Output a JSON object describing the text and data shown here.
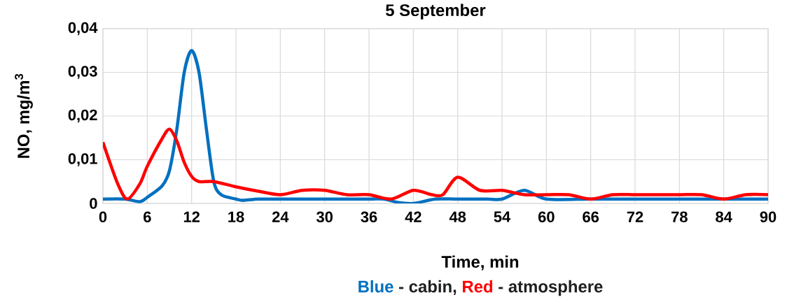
{
  "chart_data": {
    "type": "line",
    "title": "5 September",
    "xlabel": "Time, min",
    "ylabel": "NO, mg/m$^{3}$",
    "annotations": [
      "Blue",
      "- cabin,",
      "Red",
      "- atmosphere"
    ],
    "xlim": [
      0,
      90
    ],
    "xticks": [
      0,
      6,
      12,
      18,
      24,
      30,
      36,
      42,
      48,
      54,
      60,
      66,
      72,
      78,
      84,
      90
    ],
    "ylim": [
      0,
      0.04
    ],
    "yticks": [
      0,
      {
        "value": 0.01,
        "label": "0,01"
      },
      {
        "value": 0.02,
        "label": "0,02"
      },
      {
        "value": 0.03,
        "label": "0,03"
      },
      {
        "value": 0.04,
        "label": "0,04"
      }
    ],
    "grid": true,
    "marker": "none",
    "line_style": "solid",
    "series": [
      {
        "color": "#0070c0",
        "x": [
          0,
          3,
          5,
          6,
          8,
          9,
          10,
          11,
          12,
          13,
          14,
          15,
          16,
          18,
          19,
          21,
          24,
          30,
          36,
          38,
          40,
          42,
          45,
          48,
          52,
          54,
          57,
          60,
          66,
          72,
          78,
          84,
          90
        ],
        "values": [
          0.001,
          0.001,
          0.0004,
          0.0014,
          0.004,
          0.0075,
          0.017,
          0.03,
          0.035,
          0.03,
          0.017,
          0.005,
          0.002,
          0.001,
          0.0007,
          0.001,
          0.001,
          0.001,
          0.001,
          0.001,
          0.0002,
          0,
          0.001,
          0.001,
          0.001,
          0.001,
          0.003,
          0.001,
          0.001,
          0.001,
          0.001,
          0.001,
          0.001
        ]
      },
      {
        "color": "#ff0000",
        "x": [
          0,
          2,
          3.3,
          5,
          6,
          8,
          9,
          10,
          11,
          12,
          13,
          15,
          18,
          21,
          24,
          27,
          30,
          33,
          36,
          39,
          42,
          44.5,
          46,
          48,
          51,
          54,
          57,
          60,
          63,
          66,
          69,
          72,
          75,
          78,
          81,
          84,
          87,
          90
        ],
        "values": [
          0.014,
          0.0045,
          0.001,
          0.0045,
          0.0085,
          0.0148,
          0.017,
          0.0143,
          0.0094,
          0.0062,
          0.005,
          0.005,
          0.0038,
          0.0028,
          0.002,
          0.003,
          0.003,
          0.002,
          0.002,
          0.001,
          0.003,
          0.002,
          0.002,
          0.006,
          0.003,
          0.003,
          0.002,
          0.002,
          0.002,
          0.001,
          0.002,
          0.002,
          0.002,
          0.002,
          0.002,
          0.001,
          0.002,
          0.002
        ]
      }
    ]
  }
}
